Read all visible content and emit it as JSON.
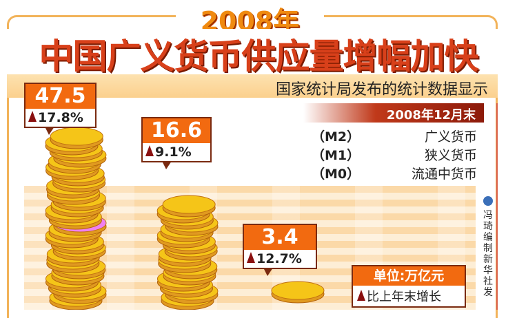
{
  "header": {
    "year": "2008年",
    "title": "中国广义货币供应量增幅加快",
    "subtitle": "国家统计局发布的统计数据显示",
    "date": "2008年12月末"
  },
  "legend": [
    {
      "code": "（M2）",
      "name": "广义货币"
    },
    {
      "code": "（M1）",
      "name": "狭义货币"
    },
    {
      "code": "（M0）",
      "name": "流通中货币"
    }
  ],
  "unit": {
    "label": "单位:万亿元",
    "growth_note": "比上年末增长"
  },
  "credit": {
    "text": "冯琦编制 新华社发"
  },
  "colors": {
    "accent": "#f26a10",
    "dark_red": "#8a1010",
    "coin": "#f5c518"
  },
  "chart_data": {
    "type": "bar",
    "title": "2008年中国广义货币供应量增幅加快",
    "categories": [
      "M2",
      "M1",
      "M0"
    ],
    "values": [
      47.5,
      16.6,
      3.4
    ],
    "growth_pct": [
      17.8,
      9.1,
      12.7
    ],
    "labels": [
      "47.5",
      "16.6",
      "3.4"
    ],
    "growth_labels": [
      "17.8%",
      "9.1%",
      "12.7%"
    ],
    "unit": "万亿元"
  }
}
